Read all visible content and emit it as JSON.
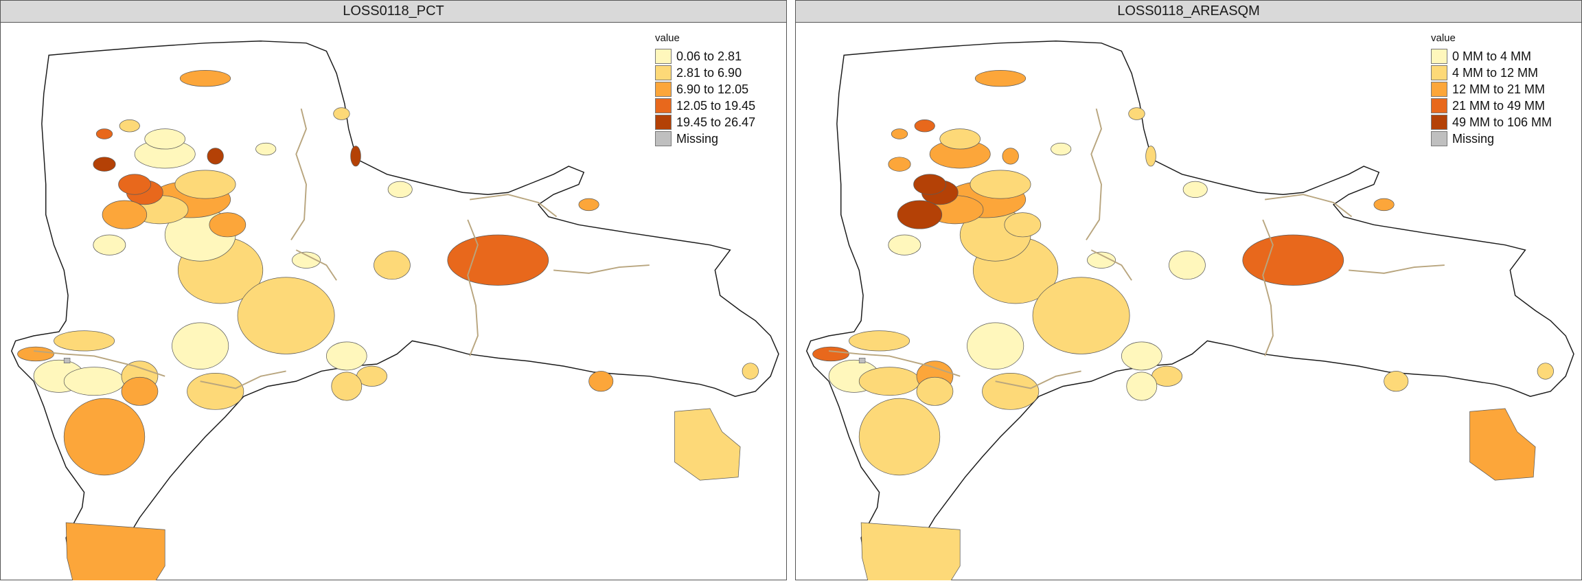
{
  "panels": [
    {
      "title": "LOSS0118_PCT",
      "legend_title": "value",
      "legend": [
        {
          "label": "0.06 to 2.81",
          "color": "#fff7bc"
        },
        {
          "label": "2.81 to 6.90",
          "color": "#fdd978"
        },
        {
          "label": "6.90 to 12.05",
          "color": "#fca63a"
        },
        {
          "label": "12.05 to 19.45",
          "color": "#e8681c"
        },
        {
          "label": "19.45 to 26.47",
          "color": "#b44106"
        },
        {
          "label": "Missing",
          "color": "#bfbfbf"
        }
      ]
    },
    {
      "title": "LOSS0118_AREASQM",
      "legend_title": "value",
      "legend": [
        {
          "label": "0 MM to 4 MM",
          "color": "#fff7bc"
        },
        {
          "label": "4 MM to 12 MM",
          "color": "#fdd978"
        },
        {
          "label": "12 MM to 21 MM",
          "color": "#fca63a"
        },
        {
          "label": "21 MM to 49 MM",
          "color": "#e8681c"
        },
        {
          "label": "49 MM to 106 MM",
          "color": "#b44106"
        },
        {
          "label": "Missing",
          "color": "#bfbfbf"
        }
      ]
    }
  ],
  "map_style": {
    "outline_color": "#1a1a1a",
    "road_color": "#b8a57e",
    "background": "#ffffff"
  },
  "left_fills": [
    "#fdd978",
    "#fff7bc",
    "#fca63a",
    "#fdd978",
    "#fff7bc",
    "#fca63a",
    "#fdd978",
    "#e8681c",
    "#fca63a",
    "#fff7bc",
    "#e8681c",
    "#fca63a",
    "#fff7bc",
    "#fdd978",
    "#fdd978",
    "#fff7bc",
    "#fff7bc",
    "#fdd978",
    "#b44106",
    "#b44106",
    "#b44106",
    "#e8681c",
    "#fca63a",
    "#fdd978",
    "#fff7bc",
    "#fdd978",
    "#fca63a",
    "#fca63a",
    "#fff7bc",
    "#fdd978",
    "#fca63a",
    "#fff7bc",
    "#fdd978",
    "#e8681c",
    "#fdd978",
    "#fff7bc",
    "#fff7bc",
    "#fdd978",
    "#fca63a"
  ],
  "right_fills": [
    "#fdd978",
    "#fdd978",
    "#fca63a",
    "#fdd978",
    "#fca63a",
    "#fdd978",
    "#fca63a",
    "#b44106",
    "#b44106",
    "#fff7bc",
    "#b44106",
    "#fca63a",
    "#fdd978",
    "#e8681c",
    "#fdd978",
    "#fff7bc",
    "#fdd978",
    "#fca63a",
    "#fca63a",
    "#fca63a",
    "#fdd978",
    "#e8681c",
    "#e8681c",
    "#fdd978",
    "#fff7bc",
    "#fdd978",
    "#fdd978",
    "#fdd978",
    "#fff7bc",
    "#fdd978",
    "#fca63a",
    "#fff7bc",
    "#fff7bc",
    "#fca63a",
    "#fdd978",
    "#fff7bc",
    "#fff7bc",
    "#fff7bc",
    "#fdd978"
  ]
}
